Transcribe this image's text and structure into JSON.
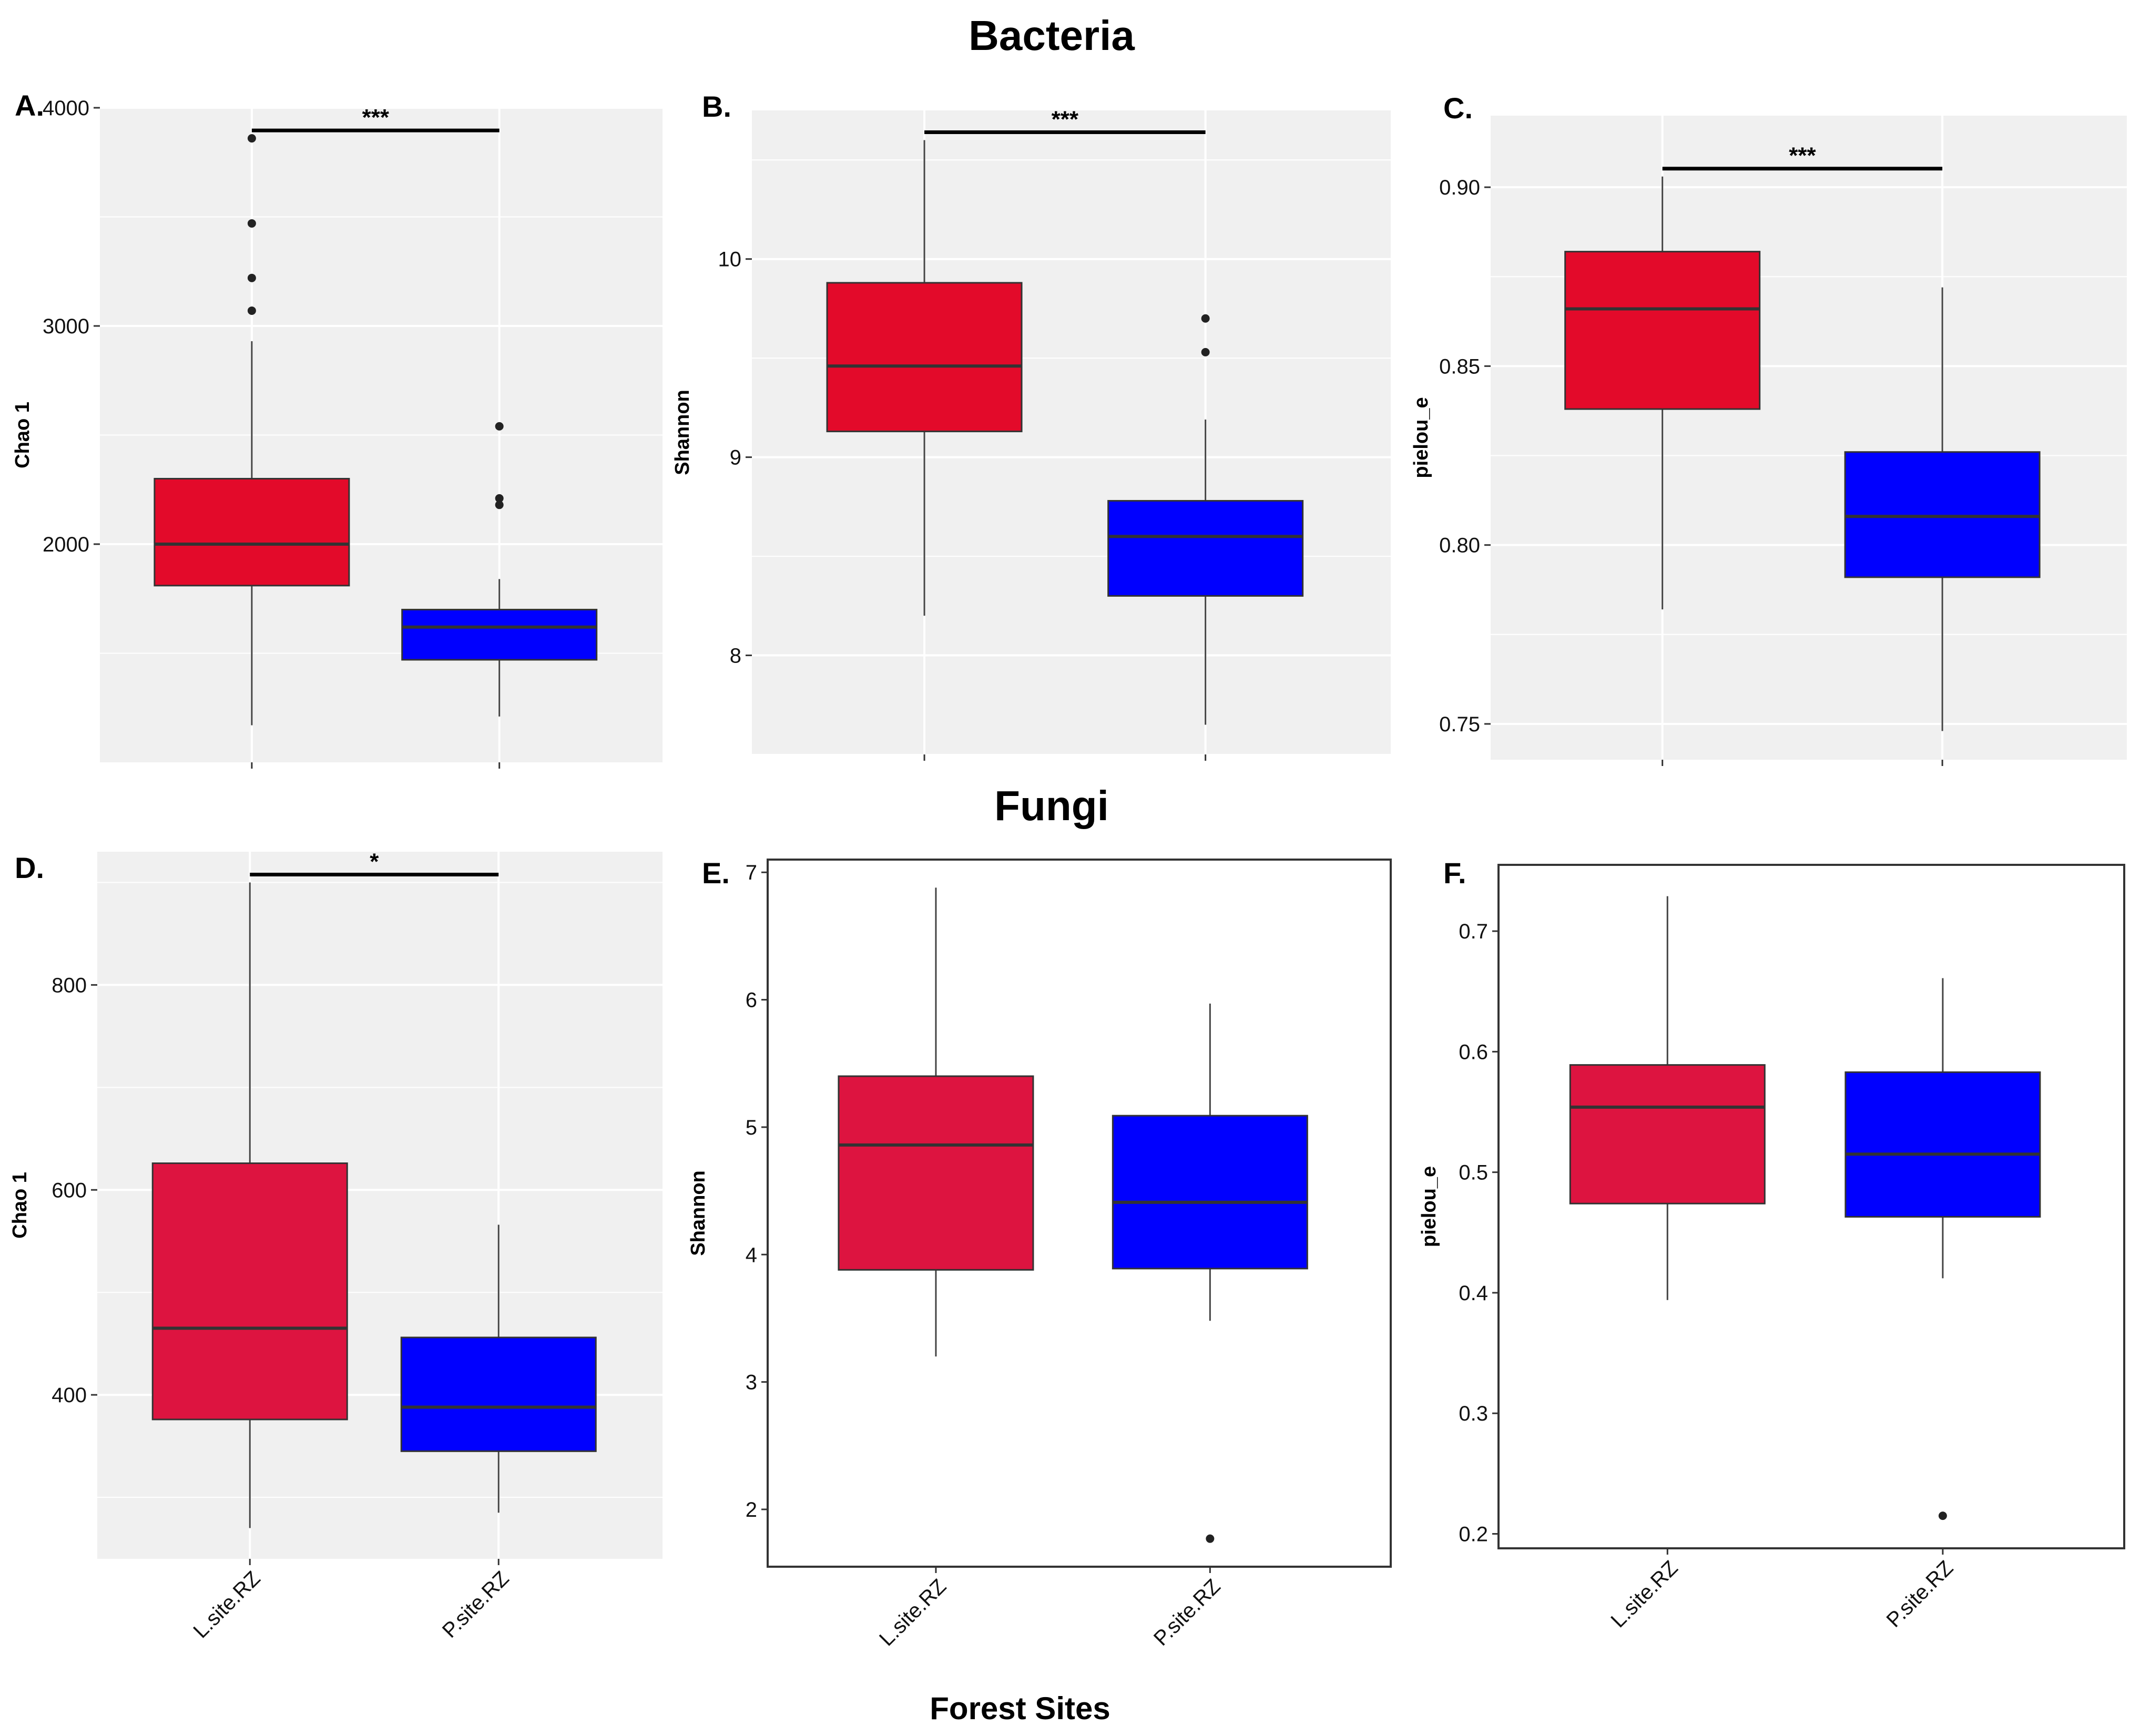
{
  "section_titles": {
    "top": "Bacteria",
    "bottom": "Fungi"
  },
  "x_axis_title": "Forest Sites",
  "categories": [
    "L.site.RZ",
    "P.site.RZ"
  ],
  "colors": {
    "L.site.RZ": "#e30a2a",
    "P.site.RZ": "#0000ff",
    "L.site.RZ.fungi": "#dd1440",
    "panel_grey": "#f0f0f0"
  },
  "chart_data": [
    {
      "id": "A",
      "label": "A.",
      "type": "box",
      "theme": "grey",
      "ylabel": "Chao 1",
      "ylim": [
        1000,
        4000
      ],
      "yticks": [
        2000,
        3000,
        4000
      ],
      "yticklabels": [
        "2000",
        "3000",
        "4000"
      ],
      "show_x_labels": false,
      "significance": "***",
      "boxes": [
        {
          "category": "L.site.RZ",
          "whisker_low": 1170,
          "q1": 1810,
          "median": 2000,
          "q3": 2300,
          "whisker_high": 2930,
          "outliers": [
            3070,
            3220,
            3470,
            3860
          ]
        },
        {
          "category": "P.site.RZ",
          "whisker_low": 1210,
          "q1": 1470,
          "median": 1620,
          "q3": 1700,
          "whisker_high": 1840,
          "outliers": [
            2180,
            2210,
            2540
          ]
        }
      ]
    },
    {
      "id": "B",
      "label": "B.",
      "type": "box",
      "theme": "grey",
      "ylabel": "Shannon",
      "ylim": [
        7.5,
        10.75
      ],
      "yticks": [
        8,
        9,
        10
      ],
      "yticklabels": [
        "8",
        "9",
        "10"
      ],
      "show_x_labels": false,
      "significance": "***",
      "boxes": [
        {
          "category": "L.site.RZ",
          "whisker_low": 8.2,
          "q1": 9.13,
          "median": 9.46,
          "q3": 9.88,
          "whisker_high": 10.6,
          "outliers": []
        },
        {
          "category": "P.site.RZ",
          "whisker_low": 7.65,
          "q1": 8.3,
          "median": 8.6,
          "q3": 8.78,
          "whisker_high": 9.19,
          "outliers": [
            9.53,
            9.7
          ]
        }
      ]
    },
    {
      "id": "C",
      "label": "C.",
      "type": "box",
      "theme": "grey",
      "ylabel": "pielou_e",
      "ylim": [
        0.74,
        0.92
      ],
      "yticks": [
        0.75,
        0.8,
        0.85,
        0.9
      ],
      "yticklabels": [
        "0.75",
        "0.80",
        "0.85",
        "0.90"
      ],
      "show_x_labels": false,
      "significance": "***",
      "boxes": [
        {
          "category": "L.site.RZ",
          "whisker_low": 0.782,
          "q1": 0.838,
          "median": 0.866,
          "q3": 0.882,
          "whisker_high": 0.903,
          "outliers": []
        },
        {
          "category": "P.site.RZ",
          "whisker_low": 0.748,
          "q1": 0.791,
          "median": 0.808,
          "q3": 0.826,
          "whisker_high": 0.872,
          "outliers": []
        }
      ]
    },
    {
      "id": "D",
      "label": "D.",
      "type": "box",
      "theme": "grey",
      "ylabel": "Chao 1",
      "ylim": [
        240,
        930
      ],
      "yticks": [
        400,
        600,
        800
      ],
      "yticklabels": [
        "400",
        "600",
        "800"
      ],
      "show_x_labels": true,
      "significance": "*",
      "boxes": [
        {
          "category": "L.site.RZ",
          "whisker_low": 270,
          "q1": 376,
          "median": 465,
          "q3": 626,
          "whisker_high": 900,
          "outliers": []
        },
        {
          "category": "P.site.RZ",
          "whisker_low": 285,
          "q1": 345,
          "median": 388,
          "q3": 456,
          "whisker_high": 566,
          "outliers": []
        }
      ]
    },
    {
      "id": "E",
      "label": "E.",
      "type": "box",
      "theme": "white",
      "ylabel": "Shannon",
      "ylim": [
        1.55,
        7.1
      ],
      "yticks": [
        2,
        3,
        4,
        5,
        6,
        7
      ],
      "yticklabels": [
        "2",
        "3",
        "4",
        "5",
        "6",
        "7"
      ],
      "show_x_labels": true,
      "significance": "",
      "boxes": [
        {
          "category": "L.site.RZ",
          "whisker_low": 3.2,
          "q1": 3.88,
          "median": 4.86,
          "q3": 5.4,
          "whisker_high": 6.88,
          "outliers": []
        },
        {
          "category": "P.site.RZ",
          "whisker_low": 3.48,
          "q1": 3.89,
          "median": 4.41,
          "q3": 5.09,
          "whisker_high": 5.97,
          "outliers": [
            1.77
          ]
        }
      ]
    },
    {
      "id": "F",
      "label": "F.",
      "type": "box",
      "theme": "white",
      "ylabel": "pielou_e",
      "ylim": [
        0.188,
        0.755
      ],
      "yticks": [
        0.2,
        0.3,
        0.4,
        0.5,
        0.6,
        0.7
      ],
      "yticklabels": [
        "0.2",
        "0.3",
        "0.4",
        "0.5",
        "0.6",
        "0.7"
      ],
      "show_x_labels": true,
      "significance": "",
      "boxes": [
        {
          "category": "L.site.RZ",
          "whisker_low": 0.394,
          "q1": 0.474,
          "median": 0.554,
          "q3": 0.589,
          "whisker_high": 0.729,
          "outliers": []
        },
        {
          "category": "P.site.RZ",
          "whisker_low": 0.412,
          "q1": 0.463,
          "median": 0.515,
          "q3": 0.583,
          "whisker_high": 0.661,
          "outliers": [
            0.215
          ]
        }
      ]
    }
  ]
}
